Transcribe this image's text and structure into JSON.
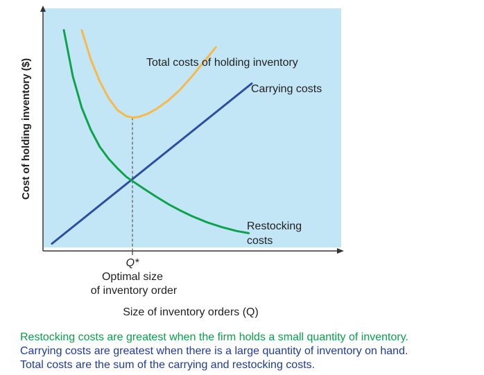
{
  "chart_data": {
    "type": "line",
    "title": "",
    "xlabel": "Size of inventory orders (Q)",
    "ylabel": "Cost of holding inventory ($)",
    "xlim": [
      0,
      100
    ],
    "ylim": [
      0,
      100
    ],
    "grid": false,
    "optimal_marker": {
      "label": "Q*",
      "x": 30,
      "caption_lines": [
        "Optimal size",
        "of inventory order"
      ]
    },
    "series": [
      {
        "name": "Carrying costs",
        "color": "#2b4da3",
        "x": [
          3,
          70
        ],
        "y": [
          3,
          69
        ]
      },
      {
        "name": "Total costs of holding inventory",
        "color": "#f6b94c",
        "x": [
          13,
          16,
          19,
          22,
          25,
          28,
          30,
          32,
          35,
          38,
          42,
          46,
          50,
          54,
          58
        ],
        "y": [
          91,
          79,
          70,
          63,
          58,
          55.5,
          55,
          55.2,
          56.5,
          58.5,
          62,
          66.5,
          72,
          78,
          84
        ]
      },
      {
        "name": "Restocking costs",
        "color": "#0da24b",
        "x": [
          7,
          10,
          13,
          16,
          19,
          22,
          25,
          28,
          30,
          34,
          38,
          42,
          46,
          50,
          55,
          60,
          65,
          69
        ],
        "y": [
          91,
          72,
          59,
          50,
          43,
          38,
          34,
          30.5,
          28.8,
          25.5,
          22.3,
          19.3,
          16.7,
          14.3,
          11.8,
          9.8,
          8.2,
          7.3
        ]
      }
    ],
    "curve_labels": {
      "total": "Total costs of holding inventory",
      "carrying": "Carrying costs",
      "restocking_lines": [
        "Restocking",
        "costs"
      ]
    }
  },
  "captions": [
    {
      "text": "Restocking costs are greatest when the firm holds a small quantity of inventory.",
      "color": "#0aa04a"
    },
    {
      "text": "Carrying costs are greatest when there is a large quantity of inventory on hand.",
      "color": "#1f3c9c"
    },
    {
      "text": "Total costs are the sum of the carrying and restocking costs.",
      "color": "#1f3c9c"
    }
  ],
  "plot_background": "#c3e6f6"
}
